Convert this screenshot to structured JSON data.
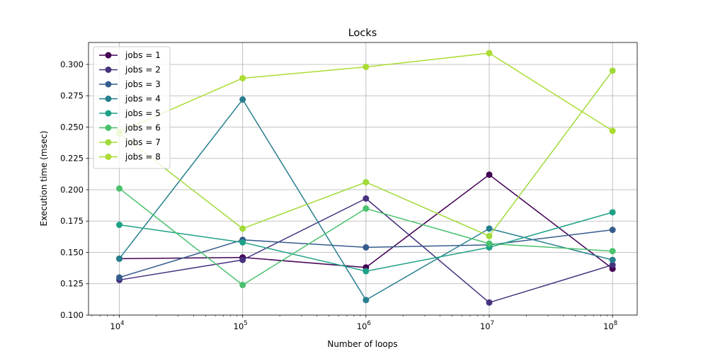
{
  "chart_data": {
    "type": "line",
    "title": "Locks",
    "xlabel": "Number of loops",
    "ylabel": "Execution time (msec)",
    "xscale": "log",
    "x": [
      10000,
      100000,
      1000000,
      10000000,
      100000000
    ],
    "xtick_base": "10",
    "xtick_exponents": [
      "4",
      "5",
      "6",
      "7",
      "8"
    ],
    "yticks": [
      "0.100",
      "0.125",
      "0.150",
      "0.175",
      "0.200",
      "0.225",
      "0.250",
      "0.275",
      "0.300"
    ],
    "ylim": [
      0.1,
      0.3175
    ],
    "grid": true,
    "legend_position": "top-left",
    "series": [
      {
        "name": "jobs = 1",
        "color": "#440154",
        "values": [
          0.145,
          0.146,
          0.138,
          0.212,
          0.137
        ]
      },
      {
        "name": "jobs = 2",
        "color": "#46327e",
        "values": [
          0.128,
          0.144,
          0.193,
          0.11,
          0.14
        ]
      },
      {
        "name": "jobs = 3",
        "color": "#365c8d",
        "values": [
          0.13,
          0.16,
          0.154,
          0.156,
          0.168
        ]
      },
      {
        "name": "jobs = 4",
        "color": "#277f8e",
        "values": [
          0.145,
          0.272,
          0.112,
          0.169,
          0.144
        ]
      },
      {
        "name": "jobs = 5",
        "color": "#1fa187",
        "values": [
          0.172,
          0.158,
          0.135,
          0.154,
          0.182
        ]
      },
      {
        "name": "jobs = 6",
        "color": "#4ac16d",
        "values": [
          0.201,
          0.124,
          0.185,
          0.157,
          0.151
        ]
      },
      {
        "name": "jobs = 7",
        "color": "#a0da39",
        "values": [
          0.245,
          0.169,
          0.206,
          0.163,
          0.295
        ]
      },
      {
        "name": "jobs = 8",
        "color": "#aadc32",
        "values": [
          0.246,
          0.289,
          0.298,
          0.309,
          0.247
        ]
      }
    ]
  }
}
